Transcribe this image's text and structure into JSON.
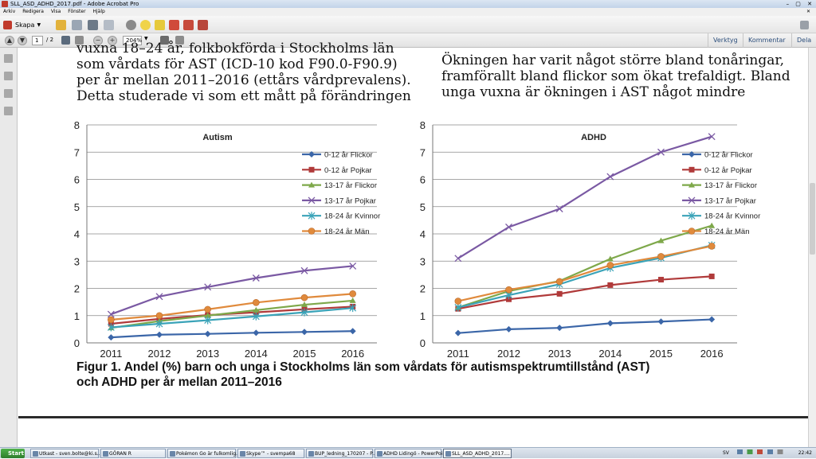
{
  "window": {
    "title": "SLL_ASD_ADHD_2017.pdf - Adobe Acrobat Pro"
  },
  "menu": [
    "Arkiv",
    "Redigera",
    "Visa",
    "Fönster",
    "Hjälp"
  ],
  "toolbar": {
    "create_label": "Skapa",
    "page_current": "1",
    "page_total": "/ 2",
    "zoom": "204%",
    "right_links": [
      "Verktyg",
      "Kommentar",
      "Dela"
    ]
  },
  "document": {
    "left_text": [
      "vuxna 18–24 år, folkbokförda i Stockholms län",
      "som vårdats för AST (ICD-10 kod F90.0-F90.9)",
      "per år mellan 2011–2016 (ettårs vårdprevalens).",
      "Detta studerade vi som ett mått på förändringen"
    ],
    "right_text": [
      "Ökningen har varit något större bland tonåringar,",
      "framförallt bland flickor som ökat trefaldigt. Bland",
      "unga vuxna är ökningen i AST något mindre"
    ],
    "caption_line1": "Figur 1. Andel (%) barn och unga i Stockholms län som vårdats för autismspektrumtillstånd (AST)",
    "caption_line2": "och ADHD per år mellan 2011–2016"
  },
  "chart_data": [
    {
      "type": "line",
      "title": "Autism",
      "x": [
        "2011",
        "2012",
        "2013",
        "2014",
        "2015",
        "2016"
      ],
      "ylim": [
        0,
        8
      ],
      "yticks": [
        0,
        1,
        2,
        3,
        4,
        5,
        6,
        7,
        8
      ],
      "grid": true,
      "legend": "right",
      "series": [
        {
          "name": "0-12 år Flickor",
          "color": "#3b66a8",
          "marker": "diamond",
          "values": [
            0.2,
            0.3,
            0.33,
            0.37,
            0.4,
            0.43
          ]
        },
        {
          "name": "0-12 år Pojkar",
          "color": "#b03a3a",
          "marker": "square",
          "values": [
            0.7,
            0.88,
            1.02,
            1.12,
            1.23,
            1.33
          ]
        },
        {
          "name": "13-17 år Flickor",
          "color": "#7ea84a",
          "marker": "triangle",
          "values": [
            0.55,
            0.8,
            1.0,
            1.2,
            1.4,
            1.55
          ]
        },
        {
          "name": "13-17 år Pojkar",
          "color": "#7a59a3",
          "marker": "x",
          "values": [
            1.05,
            1.7,
            2.05,
            2.38,
            2.65,
            2.82
          ]
        },
        {
          "name": "18-24 år Kvinnor",
          "color": "#3aa3b8",
          "marker": "star",
          "values": [
            0.57,
            0.7,
            0.83,
            0.97,
            1.12,
            1.28
          ]
        },
        {
          "name": "18-24 år Män",
          "color": "#e08a3c",
          "marker": "circle",
          "values": [
            0.85,
            1.0,
            1.23,
            1.48,
            1.66,
            1.8
          ]
        }
      ]
    },
    {
      "type": "line",
      "title": "ADHD",
      "x": [
        "2011",
        "2012",
        "2013",
        "2014",
        "2015",
        "2016"
      ],
      "ylim": [
        0,
        8
      ],
      "yticks": [
        0,
        1,
        2,
        3,
        4,
        5,
        6,
        7,
        8
      ],
      "grid": true,
      "legend": "right",
      "series": [
        {
          "name": "0-12 år Flickor",
          "color": "#3b66a8",
          "marker": "diamond",
          "values": [
            0.36,
            0.5,
            0.55,
            0.72,
            0.78,
            0.86
          ]
        },
        {
          "name": "0-12 år Pojkar",
          "color": "#b03a3a",
          "marker": "square",
          "values": [
            1.25,
            1.6,
            1.8,
            2.12,
            2.32,
            2.44
          ]
        },
        {
          "name": "13-17 år Flickor",
          "color": "#7ea84a",
          "marker": "triangle",
          "values": [
            1.3,
            1.9,
            2.27,
            3.08,
            3.75,
            4.3
          ]
        },
        {
          "name": "13-17 år Pojkar",
          "color": "#7a59a3",
          "marker": "x",
          "values": [
            3.1,
            4.25,
            4.92,
            6.1,
            7.0,
            7.57
          ]
        },
        {
          "name": "18-24 år Kvinnor",
          "color": "#3aa3b8",
          "marker": "star",
          "values": [
            1.3,
            1.75,
            2.15,
            2.75,
            3.12,
            3.58
          ]
        },
        {
          "name": "18-24 år Män",
          "color": "#e08a3c",
          "marker": "circle",
          "values": [
            1.53,
            1.95,
            2.25,
            2.85,
            3.17,
            3.55
          ]
        }
      ]
    }
  ],
  "taskbar": {
    "start_label": "Start",
    "tasks": [
      "Utkast - sven.bolte@ki.s...",
      "GÖRAN R",
      "Pokémon Go är fulkomlig...",
      "Skype™ - svempa68",
      "BUP_ledning_170207 - P...",
      "ADHD Lidingö - PowerPoint",
      "SLL_ASD_ADHD_2017...."
    ],
    "lang": "SV",
    "clock": "22:42"
  }
}
